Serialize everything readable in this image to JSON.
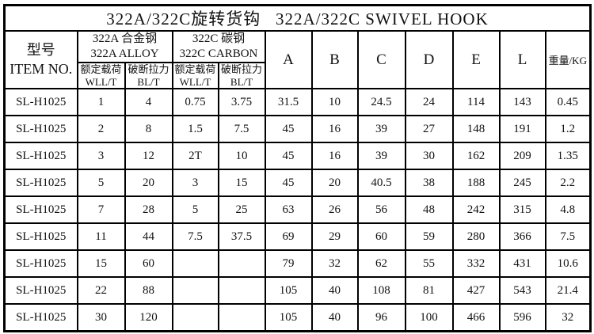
{
  "title": "322A/322C旋转货钩   322A/322C SWIVEL HOOK",
  "header": {
    "item_no": "型号\nITEM NO.",
    "groups": [
      {
        "label": "322A 合金钢\n322A ALLOY",
        "sub": [
          "额定载荷\nWLL/T",
          "破断拉力\nBL/T"
        ]
      },
      {
        "label": "322C 碳钢\n322C CARBON",
        "sub": [
          "额定载荷\nWLL/T",
          "破断拉力\nBL/T"
        ]
      }
    ],
    "dims": [
      "A",
      "B",
      "C",
      "D",
      "E",
      "L"
    ],
    "weight": "重量/KG"
  },
  "rows": [
    {
      "item": "SL-H1025",
      "values": [
        "1",
        "4",
        "0.75",
        "3.75",
        "31.5",
        "10",
        "24.5",
        "24",
        "114",
        "143",
        "0.45"
      ]
    },
    {
      "item": "SL-H1025",
      "values": [
        "2",
        "8",
        "1.5",
        "7.5",
        "45",
        "16",
        "39",
        "27",
        "148",
        "191",
        "1.2"
      ]
    },
    {
      "item": "SL-H1025",
      "values": [
        "3",
        "12",
        "2T",
        "10",
        "45",
        "16",
        "39",
        "30",
        "162",
        "209",
        "1.35"
      ]
    },
    {
      "item": "SL-H1025",
      "values": [
        "5",
        "20",
        "3",
        "15",
        "45",
        "20",
        "40.5",
        "38",
        "188",
        "245",
        "2.2"
      ]
    },
    {
      "item": "SL-H1025",
      "values": [
        "7",
        "28",
        "5",
        "25",
        "63",
        "26",
        "56",
        "48",
        "242",
        "315",
        "4.8"
      ]
    },
    {
      "item": "SL-H1025",
      "values": [
        "11",
        "44",
        "7.5",
        "37.5",
        "69",
        "29",
        "60",
        "59",
        "280",
        "366",
        "7.5"
      ]
    },
    {
      "item": "SL-H1025",
      "values": [
        "15",
        "60",
        "",
        "",
        "79",
        "32",
        "62",
        "55",
        "332",
        "431",
        "10.6"
      ]
    },
    {
      "item": "SL-H1025",
      "values": [
        "22",
        "88",
        "",
        "",
        "105",
        "40",
        "108",
        "81",
        "427",
        "543",
        "21.4"
      ]
    },
    {
      "item": "SL-H1025",
      "values": [
        "30",
        "120",
        "",
        "",
        "105",
        "40",
        "96",
        "100",
        "466",
        "596",
        "32"
      ]
    }
  ],
  "colors": {
    "border": "#000000",
    "text": "#111111",
    "background": "#ffffff"
  }
}
